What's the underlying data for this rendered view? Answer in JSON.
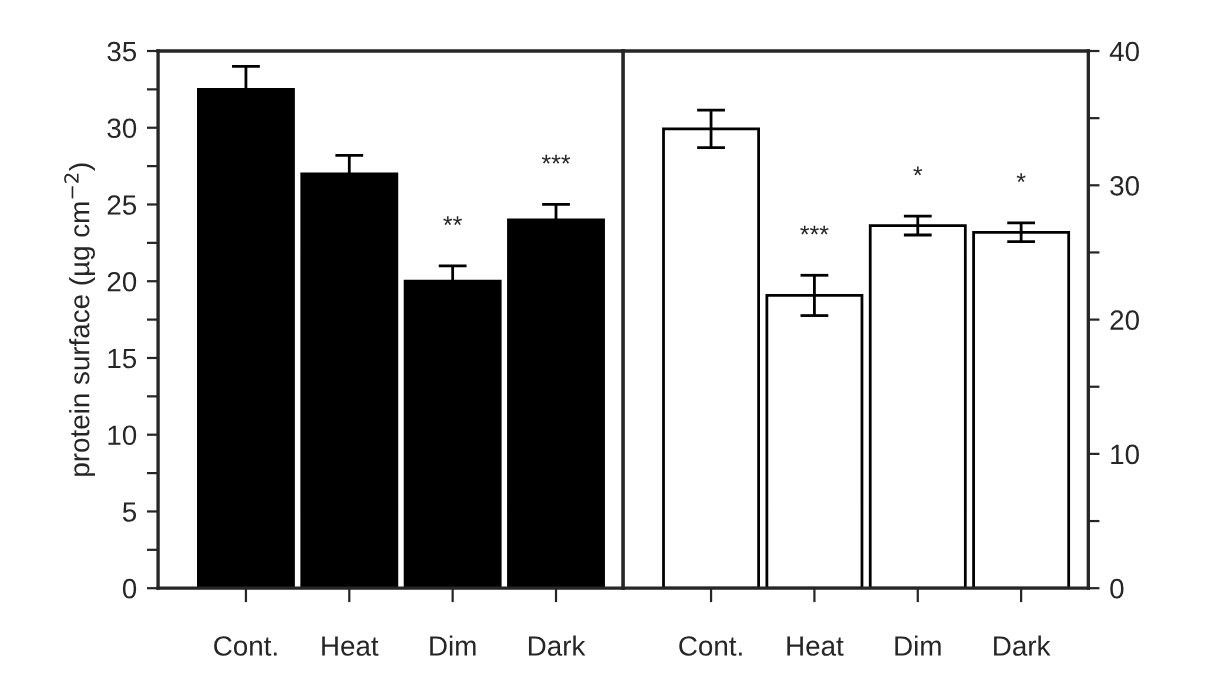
{
  "chart_data": [
    {
      "type": "bar",
      "ylabel": "protein surface (µg cm$^{−2}$)",
      "categories": [
        "Cont.",
        "Heat",
        "Dim",
        "Dark"
      ],
      "series": [
        {
          "color": "#000000",
          "values": [
            32.5,
            27,
            20,
            24
          ],
          "errors": [
            1.5,
            1.2,
            1,
            1
          ]
        }
      ],
      "ylim": [
        0,
        35
      ],
      "yticks": [
        0,
        {
          "value": 2.5,
          "label": null
        },
        5,
        {
          "value": 7.5,
          "label": null
        },
        10,
        {
          "value": 12.5,
          "label": null
        },
        15,
        {
          "value": 17.5,
          "label": null
        },
        20,
        {
          "value": 22.5,
          "label": null
        },
        25,
        {
          "value": 27.5,
          "label": null
        },
        30,
        {
          "value": 32.5,
          "label": null
        },
        35
      ],
      "annotations": [
        {
          "text": "**",
          "x": "Dim",
          "y": 20
        },
        {
          "text": "***",
          "x": "Dark",
          "y": 24
        }
      ]
    },
    {
      "type": "bar",
      "categories": [
        "Cont.",
        "Heat",
        "Dim",
        "Dark"
      ],
      "series": [
        {
          "color": "#ffffff",
          "values": [
            34.2,
            21.8,
            27,
            26.5
          ],
          "errors": [
            1.4,
            1.5,
            0.7,
            0.7
          ]
        }
      ],
      "ylim": [
        0,
        40
      ],
      "yticks": [
        0,
        {
          "value": 5,
          "label": null
        },
        10,
        {
          "value": 15,
          "label": null
        },
        20,
        {
          "value": 25,
          "label": null
        },
        30,
        {
          "value": 35,
          "label": null
        },
        40
      ],
      "annotations": [
        {
          "text": "***",
          "x": "Heat",
          "y": 21.8
        },
        {
          "text": "*",
          "x": "Dim",
          "y": 27
        },
        {
          "text": "*",
          "x": "Dark",
          "y": 26.5
        }
      ]
    }
  ]
}
